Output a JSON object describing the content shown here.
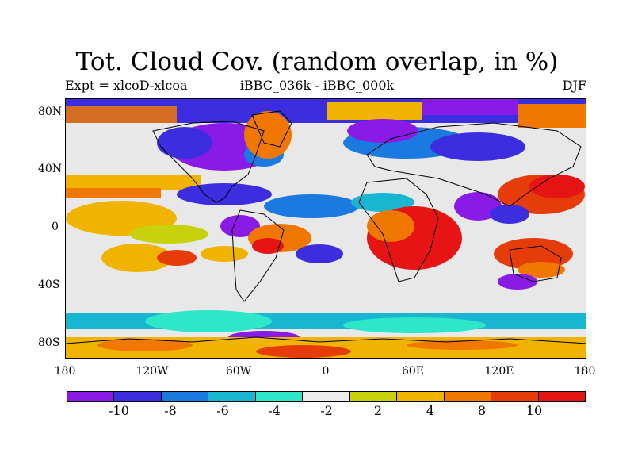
{
  "title": "Tot. Cloud Cov. (random overlap, in %)",
  "subtitle_left": "Expt = xlcoD-xlcoa",
  "subtitle_center": "iBBC_036k - iBBC_000k",
  "subtitle_right": "DJF",
  "map": {
    "projection": "cylindrical-equidistant",
    "lon_range": [
      -180,
      180
    ],
    "lat_range": [
      -90,
      90
    ],
    "x_ticks": [
      "180",
      "120W",
      "60W",
      "0",
      "60E",
      "120E",
      "180"
    ],
    "y_ticks": [
      "80N",
      "40N",
      "0",
      "40S",
      "80S"
    ],
    "coastlines": true
  },
  "colorbar": {
    "labels": [
      "-10",
      "-8",
      "-6",
      "-4",
      "-2",
      "2",
      "4",
      "8",
      "10"
    ],
    "colors": [
      "#8a1ae6",
      "#3c2ee0",
      "#1a7ae0",
      "#19b6d2",
      "#2ee6c8",
      "#ececec",
      "#c8d20c",
      "#f0b400",
      "#f07800",
      "#e63c0a",
      "#e61414"
    ]
  }
}
